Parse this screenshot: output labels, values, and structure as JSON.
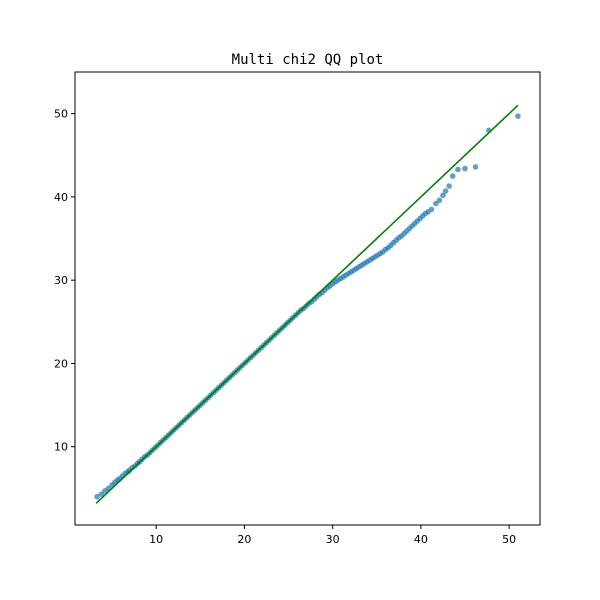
{
  "chart_data": {
    "type": "scatter",
    "title": "Multi chi2 QQ plot",
    "xlabel": "",
    "ylabel": "",
    "xlim": [
      0.8,
      53.5
    ],
    "ylim": [
      0.6,
      55.0
    ],
    "xticks": [
      "10",
      "20",
      "30",
      "40",
      "50"
    ],
    "yticks": [
      "10",
      "20",
      "30",
      "40",
      "50"
    ],
    "grid": false,
    "legend": "none",
    "colors": {
      "points": "#1f77b4",
      "reference_line": "#008000"
    },
    "reference_line": {
      "x": [
        3.2,
        51.0
      ],
      "y": [
        3.2,
        51.0
      ]
    },
    "series": [
      {
        "x": [
          3.3,
          3.8,
          4.2,
          4.6,
          5.0,
          5.3,
          5.6,
          5.9,
          6.2,
          6.5,
          6.8,
          7.0,
          7.3,
          7.6,
          7.9,
          8.1,
          8.4,
          8.7,
          9.0,
          9.3,
          9.6,
          9.9,
          10.2,
          10.5,
          10.8,
          11.1,
          11.4,
          11.7,
          12.0,
          12.3,
          12.6,
          12.9,
          13.2,
          13.5,
          13.8,
          14.1,
          14.4,
          14.7,
          15.0,
          15.3,
          15.6,
          15.9,
          16.2,
          16.5,
          16.8,
          17.1,
          17.4,
          17.7,
          18.0,
          18.3,
          18.6,
          18.9,
          19.2,
          19.5,
          19.8,
          20.1,
          20.4,
          20.7,
          21.0,
          21.3,
          21.6,
          21.9,
          22.2,
          22.5,
          22.8,
          23.1,
          23.4,
          23.7,
          24.0,
          24.3,
          24.6,
          24.9,
          25.2,
          25.5,
          25.8,
          26.1,
          26.4,
          26.7,
          27.0,
          27.3,
          27.6,
          27.9,
          28.2,
          28.5,
          28.8,
          29.1,
          29.4,
          29.7,
          30.0,
          30.3,
          30.6,
          30.9,
          31.2,
          31.5,
          31.8,
          32.1,
          32.4,
          32.7,
          33.0,
          33.3,
          33.6,
          33.9,
          34.2,
          34.5,
          34.8,
          35.1,
          35.4,
          35.7,
          36.0,
          36.3,
          36.6,
          36.9,
          37.2,
          37.5,
          37.8,
          38.1,
          38.4,
          38.7,
          39.0,
          39.3,
          39.6,
          39.9,
          40.2,
          40.5,
          40.8,
          41.2,
          41.7,
          42.1,
          42.5,
          42.8,
          43.2,
          43.6,
          44.2,
          45.0,
          46.2,
          47.7,
          51.0
        ],
        "y": [
          4.0,
          4.3,
          4.7,
          5.0,
          5.4,
          5.7,
          6.0,
          6.2,
          6.5,
          6.8,
          7.0,
          7.2,
          7.5,
          7.7,
          8.0,
          8.2,
          8.5,
          8.8,
          9.0,
          9.3,
          9.6,
          9.9,
          10.2,
          10.5,
          10.8,
          11.1,
          11.4,
          11.7,
          12.0,
          12.3,
          12.6,
          12.9,
          13.2,
          13.5,
          13.8,
          14.1,
          14.4,
          14.7,
          15.0,
          15.3,
          15.6,
          15.9,
          16.2,
          16.5,
          16.8,
          17.1,
          17.4,
          17.7,
          18.0,
          18.3,
          18.6,
          18.9,
          19.2,
          19.5,
          19.8,
          20.1,
          20.4,
          20.7,
          21.0,
          21.3,
          21.6,
          21.9,
          22.2,
          22.5,
          22.8,
          23.1,
          23.4,
          23.7,
          24.0,
          24.3,
          24.6,
          24.9,
          25.2,
          25.5,
          25.8,
          26.1,
          26.4,
          26.6,
          26.9,
          27.2,
          27.4,
          27.7,
          28.0,
          28.3,
          28.5,
          28.8,
          29.1,
          29.3,
          29.6,
          29.8,
          30.0,
          30.2,
          30.4,
          30.6,
          30.8,
          31.0,
          31.2,
          31.4,
          31.6,
          31.8,
          32.0,
          32.2,
          32.4,
          32.6,
          32.8,
          33.0,
          33.2,
          33.4,
          33.7,
          33.9,
          34.2,
          34.5,
          34.8,
          35.1,
          35.3,
          35.6,
          35.9,
          36.2,
          36.5,
          36.8,
          37.1,
          37.4,
          37.7,
          38.0,
          38.2,
          38.5,
          39.2,
          39.6,
          40.2,
          40.7,
          41.3,
          42.5,
          43.3,
          43.4,
          43.6,
          48.0,
          49.7
        ]
      }
    ]
  }
}
